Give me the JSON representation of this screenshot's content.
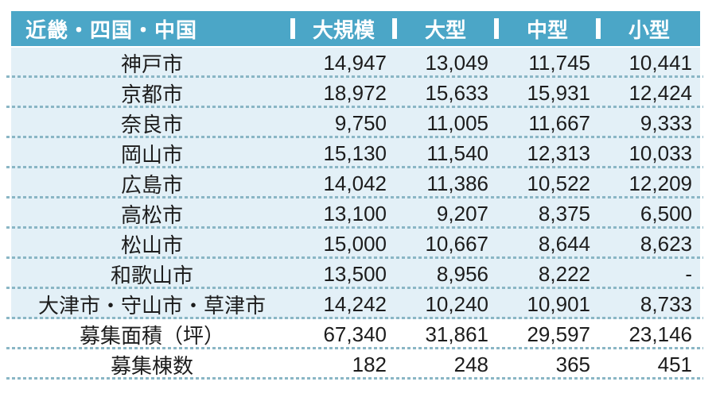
{
  "chart_data": {
    "type": "table",
    "title": "近畿・四国・中国",
    "columns": [
      "大規模",
      "大型",
      "中型",
      "小型"
    ],
    "rows": [
      {
        "label": "神戸市",
        "values": [
          "14,947",
          "13,049",
          "11,745",
          "10,441"
        ]
      },
      {
        "label": "京都市",
        "values": [
          "18,972",
          "15,633",
          "15,931",
          "12,424"
        ]
      },
      {
        "label": "奈良市",
        "values": [
          "9,750",
          "11,005",
          "11,667",
          "9,333"
        ]
      },
      {
        "label": "岡山市",
        "values": [
          "15,130",
          "11,540",
          "12,313",
          "10,033"
        ]
      },
      {
        "label": "広島市",
        "values": [
          "14,042",
          "11,386",
          "10,522",
          "12,209"
        ]
      },
      {
        "label": "高松市",
        "values": [
          "13,100",
          "9,207",
          "8,375",
          "6,500"
        ]
      },
      {
        "label": "松山市",
        "values": [
          "15,000",
          "10,667",
          "8,644",
          "8,623"
        ]
      },
      {
        "label": "和歌山市",
        "values": [
          "13,500",
          "8,956",
          "8,222",
          "-"
        ]
      },
      {
        "label": "大津市・守山市・草津市",
        "values": [
          "14,242",
          "10,240",
          "10,901",
          "8,733"
        ]
      },
      {
        "label": "募集面積（坪）",
        "values": [
          "67,340",
          "31,861",
          "29,597",
          "23,146"
        ]
      },
      {
        "label": "募集棟数",
        "values": [
          "182",
          "248",
          "365",
          "451"
        ]
      }
    ]
  },
  "colors": {
    "header_bg": "#4ba6c7",
    "header_text": "#ffffff",
    "row_bg": "#e3f0f7",
    "plain_row_bg": "#ffffff",
    "dotted_line": "#8ab6c5",
    "body_text": "#1c1c1c"
  }
}
